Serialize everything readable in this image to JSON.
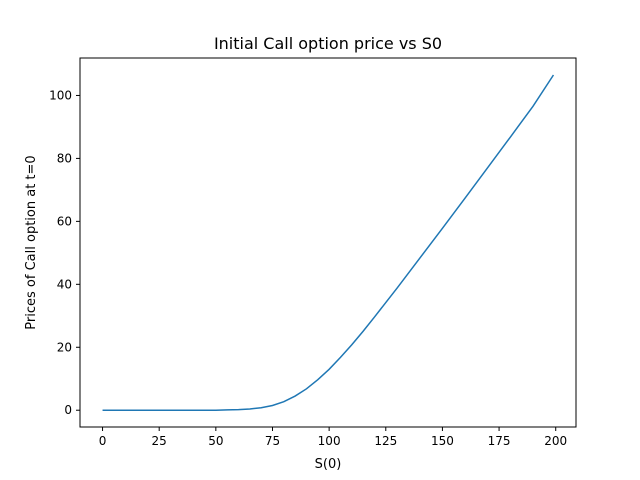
{
  "chart_data": {
    "type": "line",
    "title": "Initial Call option price vs S0",
    "xlabel": "S(0)",
    "ylabel": "Prices of Call option at t=0",
    "xlim": [
      -9.95,
      208.95
    ],
    "ylim": [
      -5.33,
      111.9
    ],
    "xticks": [
      0,
      25,
      50,
      75,
      100,
      125,
      150,
      175,
      200
    ],
    "yticks": [
      0,
      20,
      40,
      60,
      80,
      100
    ],
    "grid": false,
    "color": "#1f77b4",
    "series": [
      {
        "x": [
          0,
          10,
          20,
          30,
          40,
          50,
          55,
          60,
          65,
          70,
          75,
          80,
          85,
          90,
          95,
          100,
          105,
          110,
          115,
          120,
          125,
          130,
          140,
          150,
          160,
          170,
          180,
          190,
          199
        ],
        "y": [
          0,
          0,
          0,
          0,
          0,
          0,
          0.1,
          0.2,
          0.4,
          0.8,
          1.5,
          2.7,
          4.5,
          6.8,
          9.7,
          13.0,
          16.8,
          20.8,
          25.1,
          29.6,
          34.2,
          38.8,
          48.3,
          57.8,
          67.4,
          77.1,
          86.8,
          96.6,
          106.5
        ]
      }
    ]
  }
}
